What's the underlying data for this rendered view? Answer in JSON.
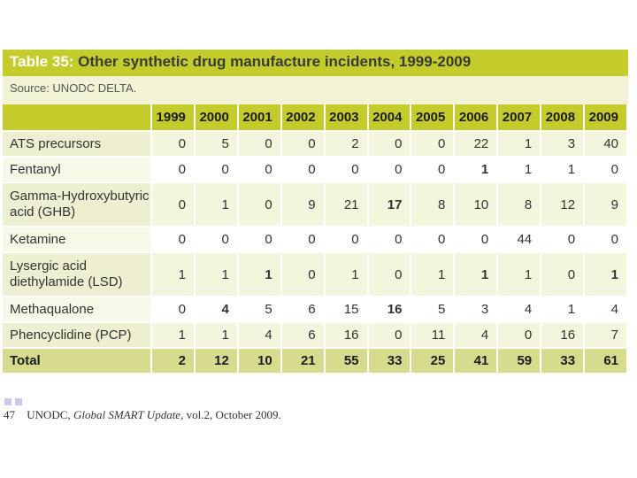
{
  "title": {
    "label": "Table 35:",
    "text": "Other synthetic drug manufacture incidents, 1999-2009"
  },
  "source": "Source: UNODC DELTA.",
  "columns": [
    "",
    "1999",
    "2000",
    "2001",
    "2002",
    "2003",
    "2004",
    "2005",
    "2006",
    "2007",
    "2008",
    "2009"
  ],
  "rows": [
    {
      "label": "ATS precursors",
      "values": [
        "0",
        "5",
        "0",
        "0",
        "2",
        "0",
        "0",
        "22",
        "1",
        "3",
        "40"
      ]
    },
    {
      "label": "Fentanyl",
      "values": [
        "0",
        "0",
        "0",
        "0",
        "0",
        "0",
        "0",
        "1",
        "1",
        "1",
        "0"
      ]
    },
    {
      "label": "Gamma-Hydroxybutyric acid (GHB)",
      "values": [
        "0",
        "1",
        "0",
        "9",
        "21",
        "17",
        "8",
        "10",
        "8",
        "12",
        "9"
      ]
    },
    {
      "label": "Ketamine",
      "values": [
        "0",
        "0",
        "0",
        "0",
        "0",
        "0",
        "0",
        "0",
        "44",
        "0",
        "0"
      ]
    },
    {
      "label": "Lysergic acid diethylamide (LSD)",
      "values": [
        "1",
        "1",
        "1",
        "0",
        "1",
        "0",
        "1",
        "1",
        "1",
        "0",
        "1"
      ]
    },
    {
      "label": "Methaqualone",
      "values": [
        "0",
        "4",
        "5",
        "6",
        "15",
        "16",
        "5",
        "3",
        "4",
        "1",
        "4"
      ]
    },
    {
      "label": "Phencyclidine (PCP)",
      "values": [
        "1",
        "1",
        "4",
        "6",
        "16",
        "0",
        "11",
        "4",
        "0",
        "16",
        "7"
      ]
    },
    {
      "label": "Total",
      "values": [
        "2",
        "12",
        "10",
        "21",
        "55",
        "33",
        "25",
        "41",
        "59",
        "33",
        "61"
      ]
    }
  ],
  "footnote": {
    "number": "47",
    "org": "UNODC,",
    "publication": "Global SMART Update",
    "rest": ", vol.2, October 2009."
  }
}
